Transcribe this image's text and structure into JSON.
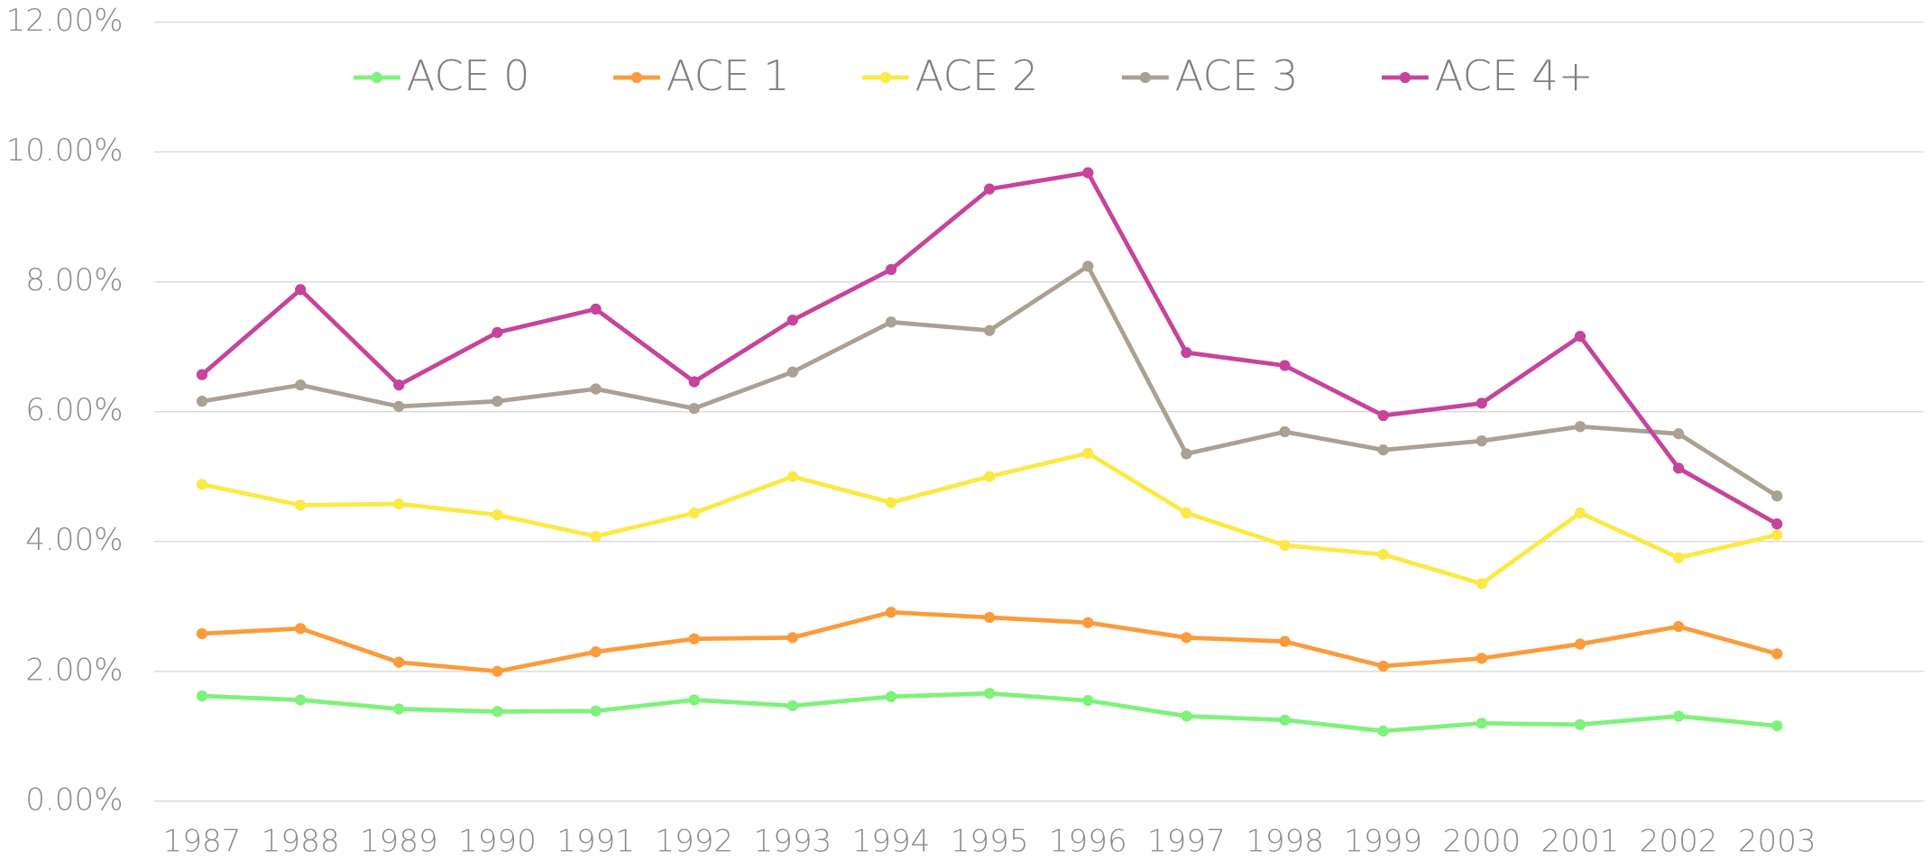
{
  "chart_data": {
    "type": "line",
    "categories": [
      "1987",
      "1988",
      "1989",
      "1990",
      "1991",
      "1992",
      "1993",
      "1994",
      "1995",
      "1996",
      "1997",
      "1998",
      "1999",
      "2000",
      "2001",
      "2002",
      "2003"
    ],
    "series": [
      {
        "name": "ACE 0",
        "color": "#7ef27a",
        "values": [
          1.62,
          1.56,
          1.42,
          1.38,
          1.39,
          1.56,
          1.47,
          1.61,
          1.66,
          1.55,
          1.31,
          1.25,
          1.08,
          1.2,
          1.18,
          1.31,
          1.16
        ]
      },
      {
        "name": "ACE 1",
        "color": "#fb9b3c",
        "values": [
          2.58,
          2.66,
          2.14,
          2.0,
          2.3,
          2.5,
          2.52,
          2.91,
          2.83,
          2.75,
          2.52,
          2.46,
          2.08,
          2.2,
          2.42,
          2.69,
          2.27
        ]
      },
      {
        "name": "ACE 2",
        "color": "#fbe945",
        "values": [
          4.88,
          4.56,
          4.58,
          4.41,
          4.08,
          4.44,
          5.0,
          4.6,
          5.0,
          5.36,
          4.44,
          3.94,
          3.8,
          3.35,
          4.44,
          3.75,
          4.1
        ]
      },
      {
        "name": "ACE 3",
        "color": "#aaa093",
        "values": [
          6.16,
          6.41,
          6.08,
          6.16,
          6.35,
          6.05,
          6.61,
          7.38,
          7.25,
          8.24,
          5.35,
          5.69,
          5.41,
          5.55,
          5.77,
          5.66,
          4.7
        ]
      },
      {
        "name": "ACE 4+",
        "color": "#c6449c",
        "values": [
          6.57,
          7.88,
          6.41,
          7.22,
          7.58,
          6.46,
          7.41,
          8.19,
          9.43,
          9.68,
          6.91,
          6.71,
          5.94,
          6.13,
          7.16,
          5.13,
          4.27
        ]
      }
    ],
    "ylim": [
      0,
      12
    ],
    "yticks": [
      {
        "value": 0,
        "label": "0.00%"
      },
      {
        "value": 2,
        "label": "2.00%"
      },
      {
        "value": 4,
        "label": "4.00%"
      },
      {
        "value": 6,
        "label": "6.00%"
      },
      {
        "value": 8,
        "label": "8.00%"
      },
      {
        "value": 10,
        "label": "10.00%"
      },
      {
        "value": 12,
        "label": "12.00%"
      }
    ],
    "grid": true,
    "legend": "top"
  }
}
